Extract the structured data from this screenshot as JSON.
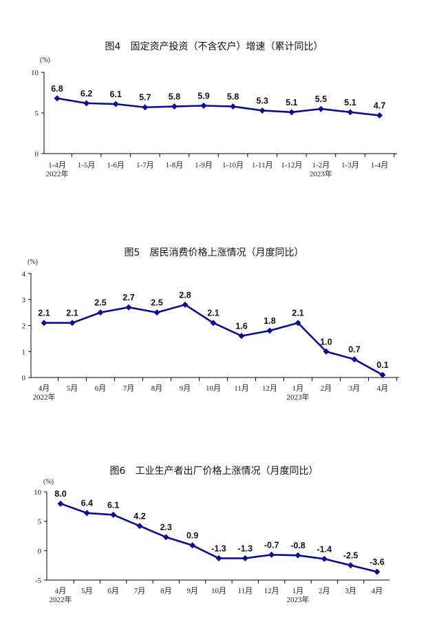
{
  "colors": {
    "line": "#0d0d8c",
    "axis": "#000000",
    "text": "#111111"
  },
  "chart_data": [
    {
      "type": "line",
      "title": "图4　固定资产投资（不含农户）增速（累计同比）",
      "ylabel": "(%)",
      "ylim": [
        0,
        10
      ],
      "yticks": [
        0,
        5,
        10
      ],
      "categories": [
        "1-4月",
        "1-5月",
        "1-6月",
        "1-7月",
        "1-8月",
        "1-9月",
        "1-10月",
        "1-11月",
        "1-12月",
        "1-2月",
        "1-3月",
        "1-4月"
      ],
      "year_labels": [
        {
          "index": 0,
          "text": "2022年"
        },
        {
          "index": 9,
          "text": "2023年"
        }
      ],
      "values": [
        6.8,
        6.2,
        6.1,
        5.7,
        5.8,
        5.9,
        5.8,
        5.3,
        5.1,
        5.5,
        5.1,
        4.7
      ],
      "value_labels": [
        "6.8",
        "6.2",
        "6.1",
        "5.7",
        "5.8",
        "5.9",
        "5.8",
        "5.3",
        "5.1",
        "5.5",
        "5.1",
        "4.7"
      ],
      "marker": "diamond",
      "grid": false
    },
    {
      "type": "line",
      "title": "图5　居民消费价格上涨情况（月度同比）",
      "ylabel": "(%)",
      "ylim": [
        0,
        4
      ],
      "yticks": [
        0,
        1,
        2,
        3,
        4
      ],
      "categories": [
        "4月",
        "5月",
        "6月",
        "7月",
        "8月",
        "9月",
        "10月",
        "11月",
        "12月",
        "1月",
        "2月",
        "3月",
        "4月"
      ],
      "year_labels": [
        {
          "index": 0,
          "text": "2022年"
        },
        {
          "index": 9,
          "text": "2023年"
        }
      ],
      "values": [
        2.1,
        2.1,
        2.5,
        2.7,
        2.5,
        2.8,
        2.1,
        1.6,
        1.8,
        2.1,
        1.0,
        0.7,
        0.1
      ],
      "value_labels": [
        "2.1",
        "2.1",
        "2.5",
        "2.7",
        "2.5",
        "2.8",
        "2.1",
        "1.6",
        "1.8",
        "2.1",
        "1.0",
        "0.7",
        "0.1"
      ],
      "marker": "diamond",
      "grid": false
    },
    {
      "type": "line",
      "title": "图6　工业生产者出厂价格上涨情况（月度同比）",
      "ylabel": "(%)",
      "ylim": [
        -5,
        10
      ],
      "yticks": [
        -5,
        0,
        5,
        10
      ],
      "categories": [
        "4月",
        "5月",
        "6月",
        "7月",
        "8月",
        "9月",
        "10月",
        "11月",
        "12月",
        "1月",
        "2月",
        "3月",
        "4月"
      ],
      "year_labels": [
        {
          "index": 0,
          "text": "2022年"
        },
        {
          "index": 9,
          "text": "2023年"
        }
      ],
      "values": [
        8.0,
        6.4,
        6.1,
        4.2,
        2.3,
        0.9,
        -1.3,
        -1.3,
        -0.7,
        -0.8,
        -1.4,
        -2.5,
        -3.6
      ],
      "value_labels": [
        "8.0",
        "6.4",
        "6.1",
        "4.2",
        "2.3",
        "0.9",
        "-1.3",
        "-1.3",
        "-0.7",
        "-0.8",
        "-1.4",
        "-2.5",
        "-3.6"
      ],
      "marker": "diamond",
      "grid": false
    }
  ]
}
